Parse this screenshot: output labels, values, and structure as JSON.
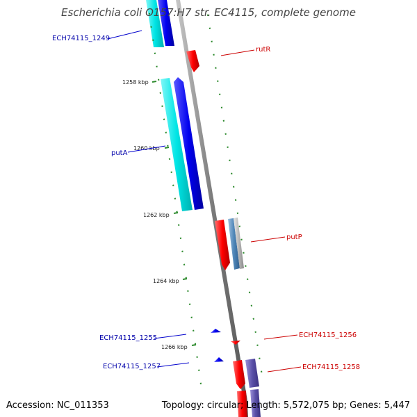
{
  "title": "Escherichia coli O157:H7 str. EC4115, complete genome",
  "footer": {
    "accession": "Accession: NC_011353",
    "summary": "Topology: circular; Length: 5,572,075 bp; Genes: 5,447"
  },
  "ticks": [
    "1258 kbp",
    "1260 kbp",
    "1262 kbp",
    "1264 kbp",
    "1266 kbp"
  ],
  "gene_labels": {
    "ech1249": "ECH74115_1249",
    "rutR": "rutR",
    "putA": "putA",
    "putP": "putP",
    "ech1255": "ECH74115_1255",
    "ech1256": "ECH74115_1256",
    "ech1257": "ECH74115_1257",
    "ech1258": "ECH74115_1258"
  },
  "colors": {
    "forward_gene": "#ff0000",
    "reverse_gene": "#0000ee",
    "cds_reverse": "#00e5e5",
    "cds_forward": "#b0b0b0",
    "backbone": "#8a8a8a",
    "gc_dots": "#2e8b2e",
    "label_reverse": "#0000aa",
    "label_forward": "#cc0000"
  }
}
